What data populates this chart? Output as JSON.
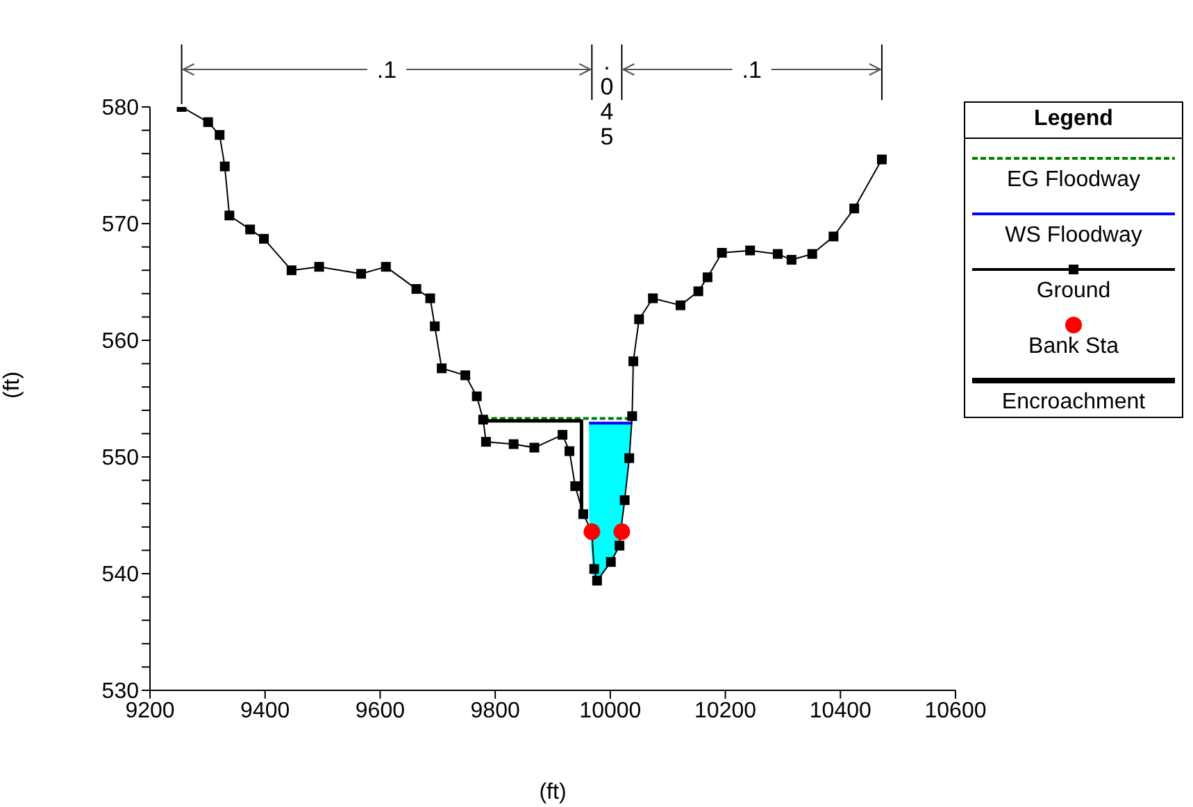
{
  "chart_data": {
    "type": "line",
    "xlabel": "(ft)",
    "ylabel": "(ft)",
    "legend_title": "Legend",
    "legend": "right",
    "grid": false,
    "xlim": [
      9200,
      10600
    ],
    "xticks": [
      9200,
      9400,
      9600,
      9800,
      10000,
      10200,
      10400,
      10600
    ],
    "ylim": [
      530,
      580
    ],
    "yticks": [
      530,
      {
        "value": 532,
        "label": null
      },
      {
        "value": 534,
        "label": null
      },
      {
        "value": 536,
        "label": null
      },
      {
        "value": 538,
        "label": null
      },
      540,
      {
        "value": 542,
        "label": null
      },
      {
        "value": 544,
        "label": null
      },
      {
        "value": 546,
        "label": null
      },
      {
        "value": 548,
        "label": null
      },
      550,
      {
        "value": 552,
        "label": null
      },
      {
        "value": 554,
        "label": null
      },
      {
        "value": 556,
        "label": null
      },
      {
        "value": 558,
        "label": null
      },
      560,
      {
        "value": 562,
        "label": null
      },
      {
        "value": 564,
        "label": null
      },
      {
        "value": 566,
        "label": null
      },
      {
        "value": 568,
        "label": null
      },
      570,
      {
        "value": 572,
        "label": null
      },
      {
        "value": 574,
        "label": null
      },
      {
        "value": 576,
        "label": null
      },
      {
        "value": 578,
        "label": null
      },
      580
    ],
    "annotations": [
      ".1",
      ".045",
      ".1"
    ],
    "series": [
      {
        "name": "EG Floodway",
        "type": "line",
        "color": "#008000",
        "line_style": "dashed",
        "marker": "none",
        "x": [
          9779,
          10038
        ],
        "values": [
          553.3,
          553.3
        ]
      },
      {
        "name": "WS Floodway",
        "type": "line",
        "color": "#0000ff",
        "line_style": "solid",
        "marker": "none",
        "x": [
          9963,
          9970,
          9977,
          10001,
          10016,
          10018,
          10025,
          10033,
          10038
        ],
        "values": [
          552.9,
          552.9,
          552.9,
          552.9,
          552.9,
          552.9,
          552.9,
          552.9,
          552.9
        ],
        "lower": [
          545,
          539.8,
          539.4,
          541,
          542.4,
          543.6,
          546.3,
          549.9,
          552.9
        ],
        "upper": [
          552.9,
          552.9,
          552.9,
          552.9,
          552.9,
          552.9,
          552.9,
          552.9,
          552.9
        ]
      },
      {
        "name": "Ground",
        "color": "#000000",
        "line_style": "solid",
        "marker": "square",
        "x": [
          9255,
          9301,
          9321,
          9330,
          9338,
          9374,
          9398,
          9446,
          9494,
          9567,
          9610,
          9663,
          9687,
          9695,
          9707,
          9748,
          9768,
          9779,
          9784,
          9832,
          9868,
          9917,
          9929,
          9939,
          9953,
          9968,
          9972,
          9977,
          10001,
          10016,
          10018,
          10025,
          10033,
          10038,
          10040,
          10050,
          10074,
          10122,
          10153,
          10169,
          10194,
          10243,
          10291,
          10315,
          10351,
          10388,
          10424,
          10472
        ],
        "values": [
          580,
          578.7,
          577.6,
          574.9,
          570.7,
          569.5,
          568.7,
          566,
          566.3,
          565.7,
          566.3,
          564.4,
          563.6,
          561.2,
          557.6,
          557,
          555.2,
          553.2,
          551.3,
          551.1,
          550.8,
          551.9,
          550.5,
          547.5,
          545.1,
          543.6,
          540.4,
          539.4,
          541,
          542.4,
          543.6,
          546.3,
          549.9,
          553.5,
          558.2,
          561.8,
          563.6,
          563,
          564.2,
          565.4,
          567.5,
          567.7,
          567.4,
          566.9,
          567.4,
          568.9,
          571.3,
          575.5
        ]
      },
      {
        "name": "Bank Sta",
        "type": "scatter",
        "color": "#ff0000",
        "marker": "circle",
        "x": [
          9968,
          10020
        ],
        "values": [
          543.6,
          543.6
        ]
      },
      {
        "name": "Encroachment",
        "type": "line",
        "color": "#000000",
        "line_style": "solid",
        "marker": "none",
        "x": [
          9779,
          9950,
          9950
        ],
        "values": [
          553.1,
          553.1,
          545.5
        ]
      }
    ]
  }
}
